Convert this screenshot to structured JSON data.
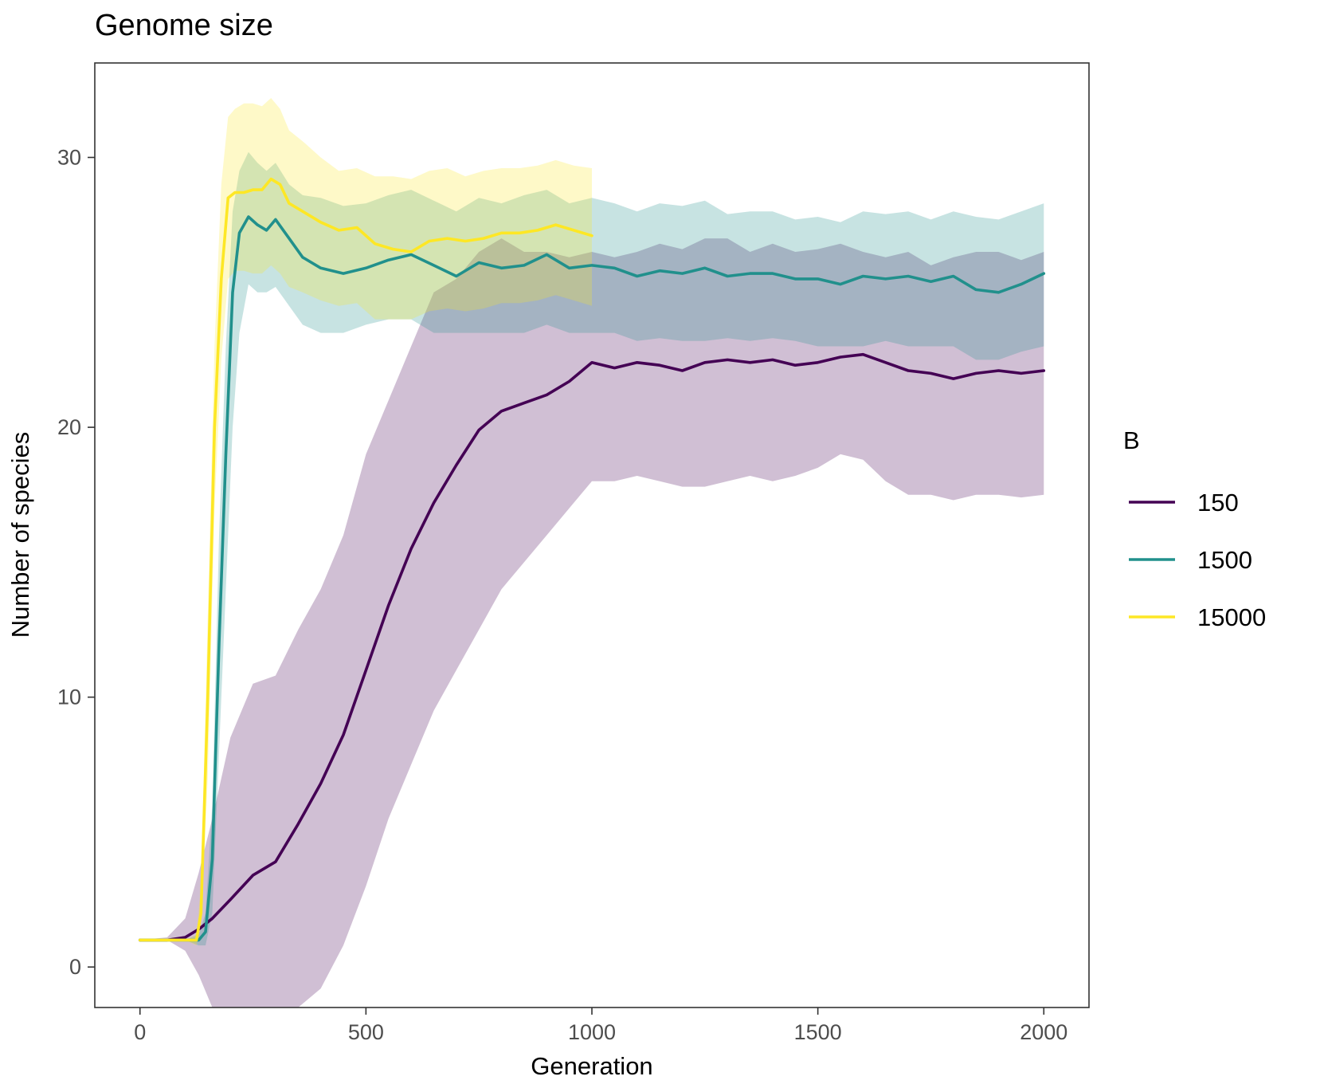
{
  "chart_data": {
    "type": "line",
    "title": "Genome size",
    "xlabel": "Generation",
    "ylabel": "Number of species",
    "xlim": [
      -100,
      2100
    ],
    "ylim": [
      -1.5,
      33.5
    ],
    "xticks": [
      0,
      500,
      1000,
      1500,
      2000
    ],
    "yticks": [
      0,
      10,
      20,
      30
    ],
    "grid": false,
    "legend": {
      "title": "B",
      "placement": "right"
    },
    "series": [
      {
        "name": "150",
        "color": "#440154",
        "band_opacity": 0.25,
        "x": [
          0,
          60,
          100,
          130,
          160,
          200,
          250,
          300,
          350,
          400,
          450,
          500,
          550,
          600,
          650,
          700,
          750,
          800,
          850,
          900,
          950,
          1000,
          1050,
          1100,
          1150,
          1200,
          1250,
          1300,
          1350,
          1400,
          1450,
          1500,
          1550,
          1600,
          1650,
          1700,
          1750,
          1800,
          1850,
          1900,
          1950,
          2000
        ],
        "y": [
          1,
          1,
          1.1,
          1.4,
          1.8,
          2.5,
          3.4,
          3.9,
          5.3,
          6.8,
          8.6,
          11.0,
          13.4,
          15.5,
          17.2,
          18.6,
          19.9,
          20.6,
          20.9,
          21.2,
          21.7,
          22.4,
          22.2,
          22.4,
          22.3,
          22.1,
          22.4,
          22.5,
          22.4,
          22.5,
          22.3,
          22.4,
          22.6,
          22.7,
          22.4,
          22.1,
          22.0,
          21.8,
          22.0,
          22.1,
          22.0,
          22.1
        ],
        "lower": [
          1,
          1,
          0.6,
          -0.3,
          -1.5,
          -3.0,
          -3.5,
          -3.0,
          -2.0,
          -0.8,
          0.8,
          3.0,
          5.5,
          7.5,
          9.5,
          11.0,
          12.5,
          14.0,
          15.0,
          16.0,
          17.0,
          18.0,
          18.0,
          18.2,
          18.0,
          17.8,
          17.8,
          18.0,
          18.2,
          18.0,
          18.2,
          18.5,
          19.0,
          18.8,
          18.0,
          17.5,
          17.5,
          17.3,
          17.5,
          17.5,
          17.4,
          17.5
        ],
        "upper": [
          1,
          1.1,
          1.8,
          3.5,
          5.5,
          8.5,
          10.5,
          10.8,
          12.5,
          14.0,
          16.0,
          19.0,
          21.0,
          23.0,
          25.0,
          25.5,
          26.5,
          27.0,
          26.5,
          26.5,
          26.3,
          26.5,
          26.3,
          26.5,
          26.8,
          26.6,
          27.0,
          27.0,
          26.5,
          26.8,
          26.5,
          26.6,
          26.8,
          26.5,
          26.3,
          26.5,
          26.0,
          26.3,
          26.5,
          26.5,
          26.2,
          26.5
        ]
      },
      {
        "name": "1500",
        "color": "#21908C",
        "band_opacity": 0.25,
        "x": [
          0,
          60,
          100,
          130,
          145,
          160,
          175,
          190,
          205,
          220,
          240,
          260,
          280,
          300,
          330,
          360,
          400,
          450,
          500,
          550,
          600,
          650,
          700,
          750,
          800,
          850,
          900,
          950,
          1000,
          1050,
          1100,
          1150,
          1200,
          1250,
          1300,
          1350,
          1400,
          1450,
          1500,
          1550,
          1600,
          1650,
          1700,
          1750,
          1800,
          1850,
          1900,
          1950,
          2000
        ],
        "y": [
          1,
          1,
          1,
          1.0,
          1.3,
          4,
          12,
          19,
          25,
          27.2,
          27.8,
          27.5,
          27.3,
          27.7,
          27.0,
          26.3,
          25.9,
          25.7,
          25.9,
          26.2,
          26.4,
          26.0,
          25.6,
          26.1,
          25.9,
          26.0,
          26.4,
          25.9,
          26.0,
          25.9,
          25.6,
          25.8,
          25.7,
          25.9,
          25.6,
          25.7,
          25.7,
          25.5,
          25.5,
          25.3,
          25.6,
          25.5,
          25.6,
          25.4,
          25.6,
          25.1,
          25.0,
          25.3,
          25.7
        ],
        "lower": [
          1,
          1,
          1,
          0.8,
          0.8,
          2,
          8,
          14,
          20,
          23.5,
          25.3,
          25.0,
          25.0,
          25.2,
          24.5,
          23.8,
          23.5,
          23.5,
          23.8,
          24.0,
          24.0,
          23.5,
          23.5,
          23.5,
          23.5,
          23.5,
          23.8,
          23.5,
          23.5,
          23.5,
          23.2,
          23.3,
          23.2,
          23.2,
          23.3,
          23.2,
          23.3,
          23.2,
          23.0,
          23.0,
          23.0,
          23.2,
          23.0,
          23.0,
          23.0,
          22.5,
          22.5,
          22.8,
          23.0
        ],
        "upper": [
          1,
          1,
          1,
          1.2,
          2,
          6,
          16,
          23,
          28,
          29.5,
          30.2,
          29.8,
          29.5,
          29.8,
          29.0,
          28.6,
          28.5,
          28.2,
          28.3,
          28.6,
          28.8,
          28.4,
          28.0,
          28.5,
          28.3,
          28.6,
          28.8,
          28.3,
          28.5,
          28.3,
          28.0,
          28.3,
          28.2,
          28.4,
          27.9,
          28.0,
          28.0,
          27.7,
          27.8,
          27.6,
          28.0,
          27.9,
          28.0,
          27.7,
          28.0,
          27.8,
          27.7,
          28.0,
          28.3
        ]
      },
      {
        "name": "15000",
        "color": "#FDE725",
        "band_opacity": 0.25,
        "x": [
          0,
          60,
          100,
          125,
          135,
          150,
          165,
          180,
          195,
          210,
          230,
          250,
          270,
          290,
          310,
          330,
          360,
          400,
          440,
          480,
          520,
          560,
          600,
          640,
          680,
          720,
          760,
          800,
          840,
          880,
          920,
          960,
          1000
        ],
        "y": [
          1,
          1,
          1,
          1.0,
          2,
          10,
          20,
          25.5,
          28.5,
          28.7,
          28.7,
          28.8,
          28.8,
          29.2,
          29.0,
          28.3,
          28.0,
          27.6,
          27.3,
          27.4,
          26.8,
          26.6,
          26.5,
          26.9,
          27.0,
          26.9,
          27.0,
          27.2,
          27.2,
          27.3,
          27.5,
          27.3,
          27.1
        ],
        "lower": [
          1,
          1,
          1,
          0.8,
          1.5,
          7,
          17,
          22.5,
          25.5,
          25.8,
          25.8,
          25.7,
          25.7,
          26.0,
          25.7,
          25.2,
          25.0,
          24.7,
          24.5,
          24.6,
          24.0,
          24.0,
          24.0,
          24.3,
          24.4,
          24.3,
          24.4,
          24.6,
          24.6,
          24.7,
          24.9,
          24.7,
          24.5
        ],
        "upper": [
          1,
          1,
          1,
          1.2,
          3,
          13,
          23,
          29,
          31.5,
          31.8,
          32.0,
          32.0,
          31.9,
          32.2,
          31.8,
          31.0,
          30.6,
          30.0,
          29.5,
          29.6,
          29.3,
          29.3,
          29.2,
          29.5,
          29.6,
          29.3,
          29.5,
          29.6,
          29.6,
          29.7,
          29.9,
          29.7,
          29.6
        ]
      }
    ]
  }
}
